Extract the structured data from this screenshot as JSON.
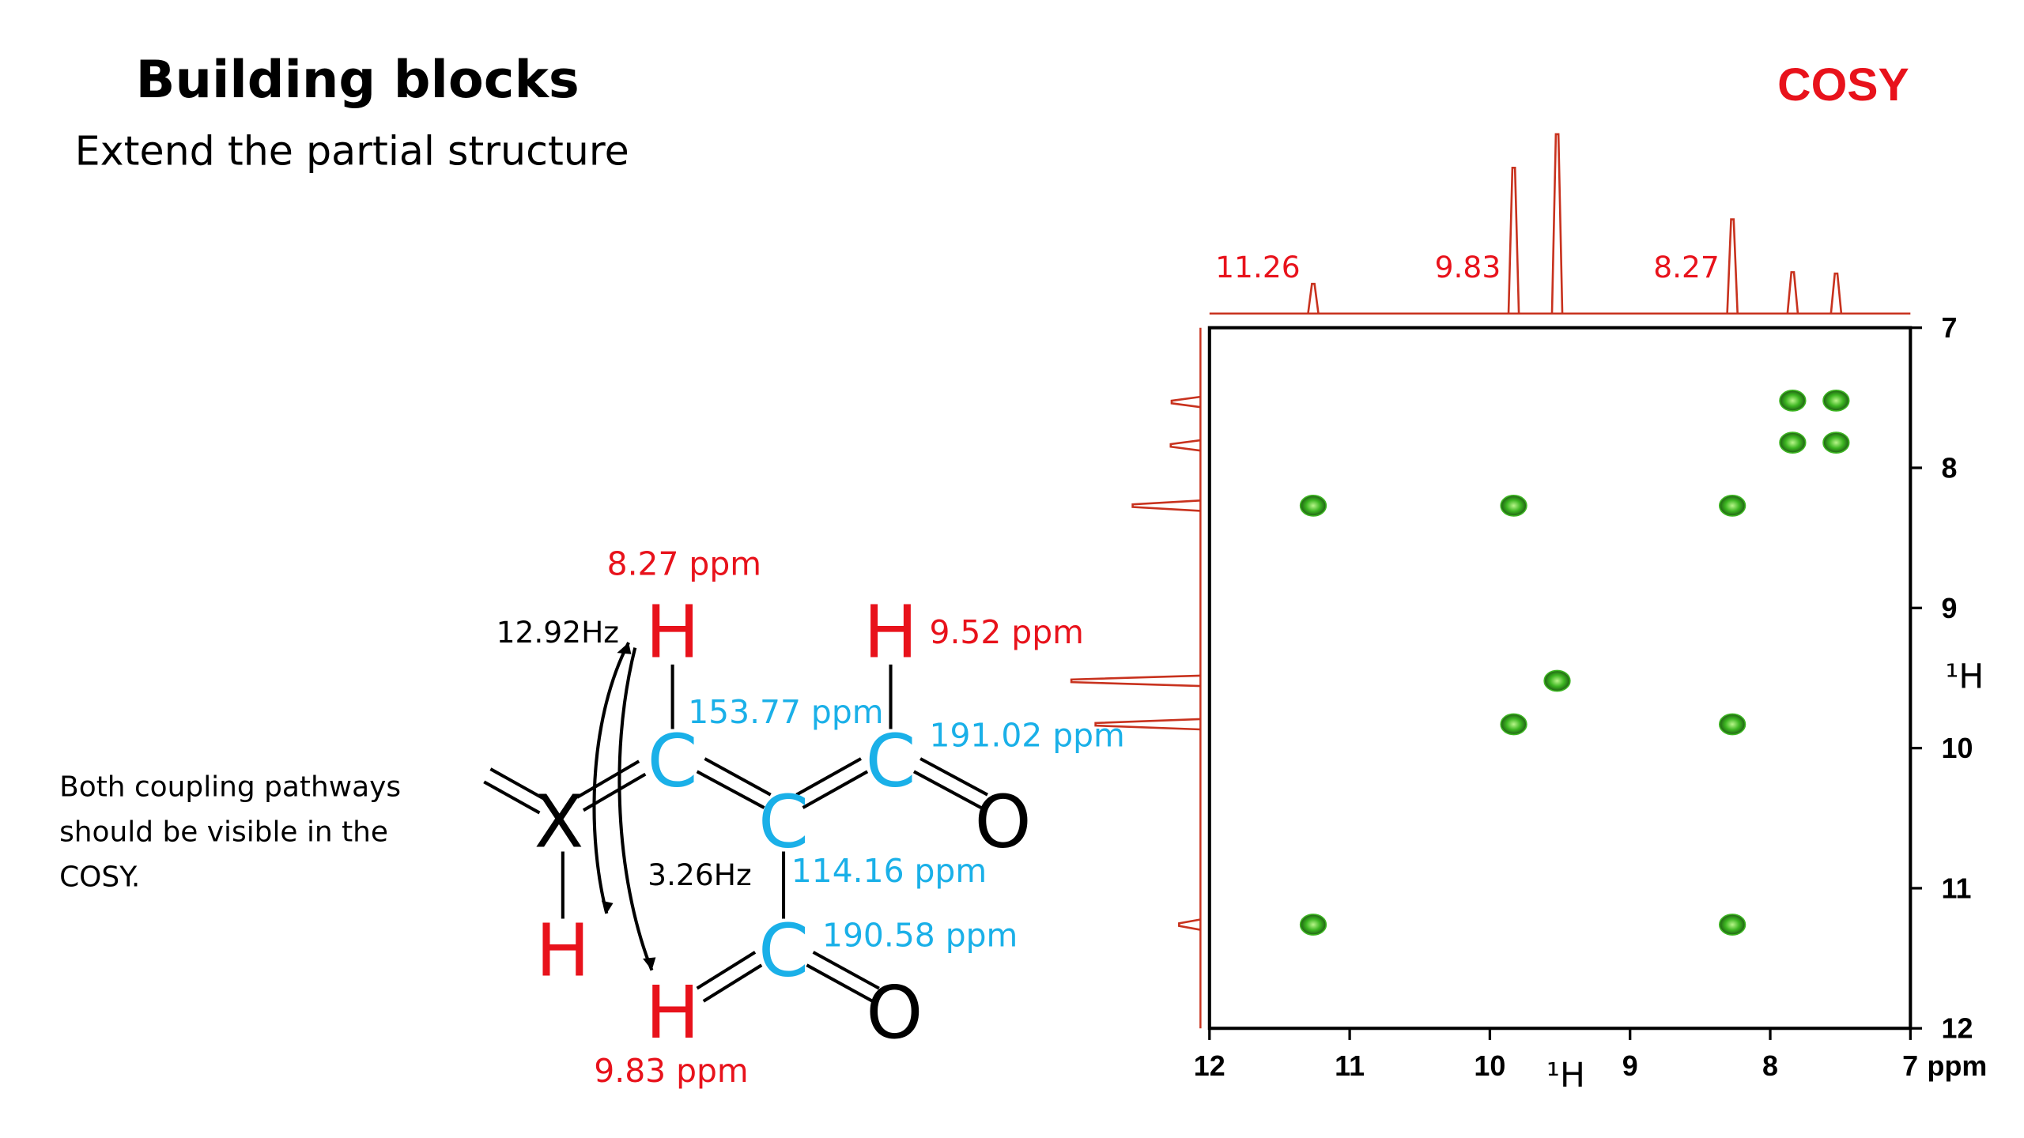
{
  "header": {
    "title": "Building blocks",
    "subtitle": "Extend the partial structure"
  },
  "note": [
    "Both coupling pathways",
    "should be visible in the",
    "COSY."
  ],
  "molecule": {
    "atoms": [
      "H",
      "H",
      "C",
      "C",
      "C",
      "C",
      "O",
      "O",
      "X",
      "H",
      "H"
    ],
    "shifts": [
      "8.27 ppm",
      "9.52 ppm",
      "153.77 ppm",
      "191.02 ppm",
      "114.16 ppm",
      "190.58 ppm",
      "9.83 ppm"
    ],
    "couplings": [
      "12.92Hz",
      "3.26Hz"
    ]
  },
  "chart_data": {
    "type": "scatter",
    "title": "COSY",
    "x_label": "¹H",
    "y_label": "¹H",
    "x_unit": "ppm",
    "xlim": [
      12,
      7
    ],
    "ylim": [
      7,
      12
    ],
    "xticks": [
      12,
      11,
      10,
      9,
      8,
      7
    ],
    "yticks": [
      7,
      8,
      9,
      10,
      11,
      12
    ],
    "peak_color": "#3cb521",
    "projection_color": "#c8321e",
    "peaks": {
      "x": [
        11.26,
        9.83,
        8.27,
        9.52,
        9.83,
        8.27,
        11.26,
        8.27,
        7.53,
        7.84,
        7.84,
        7.53
      ],
      "y": [
        8.27,
        8.27,
        8.27,
        9.52,
        9.83,
        9.83,
        11.26,
        11.26,
        7.52,
        7.82,
        7.52,
        7.82
      ]
    },
    "projection": {
      "x": [
        11.26,
        9.83,
        9.52,
        8.27,
        7.84,
        7.53
      ],
      "intensity": [
        23,
        113,
        139,
        73,
        32,
        31
      ]
    },
    "peak_labels": [
      11.26,
      9.83,
      8.27
    ]
  }
}
